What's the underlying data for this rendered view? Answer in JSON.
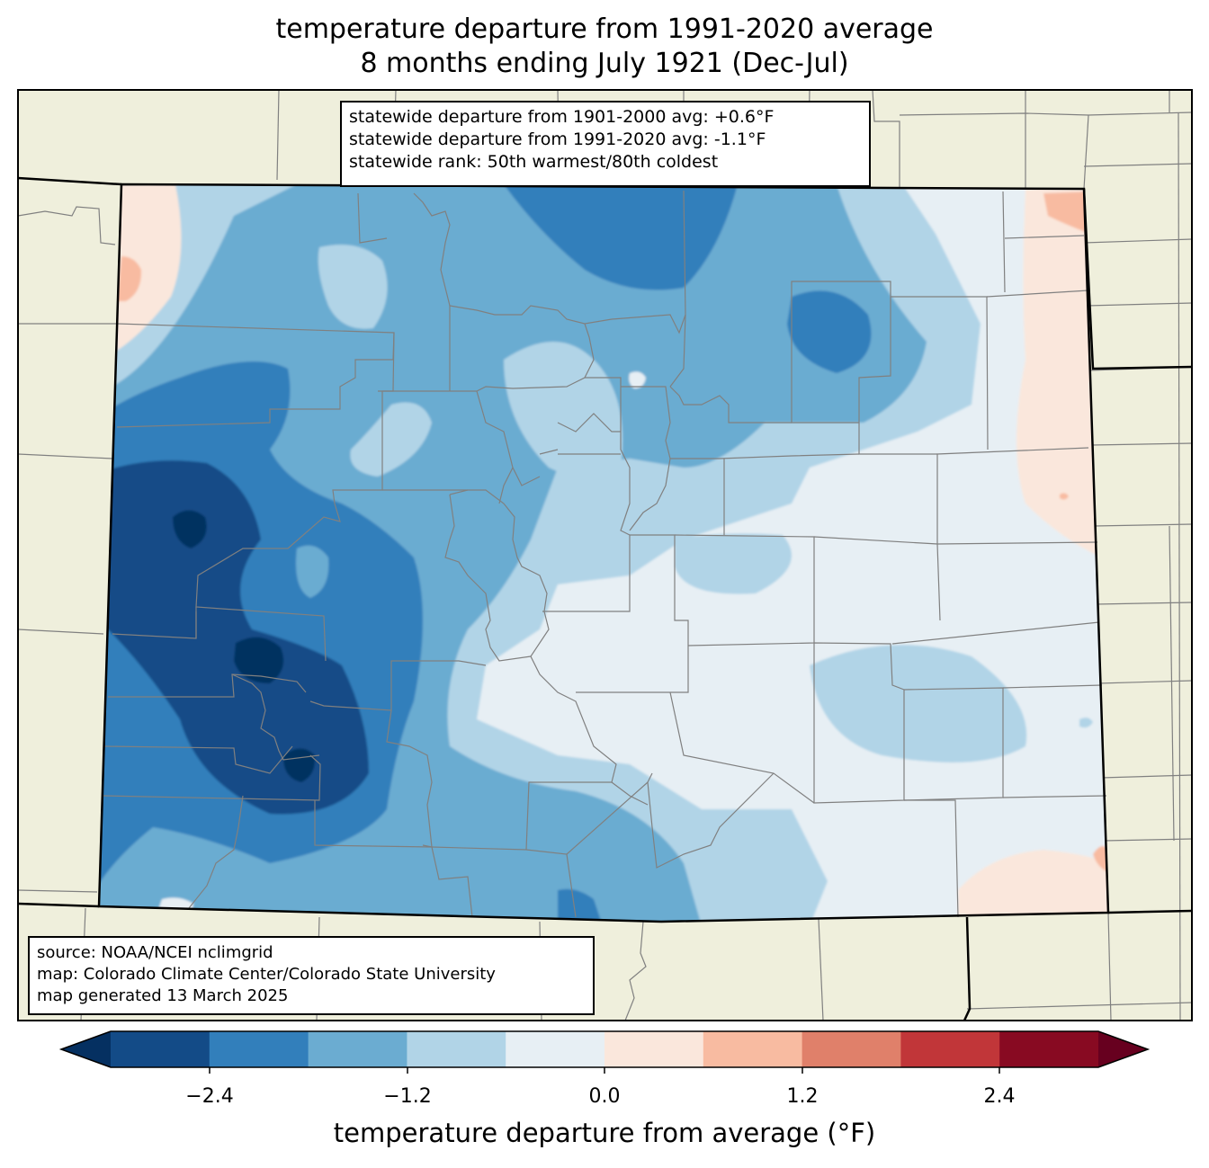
{
  "title": {
    "line1": "temperature departure from 1991-2020 average",
    "line2": "8 months ending July 1921 (Dec-Jul)"
  },
  "stats": {
    "line1": "statewide departure from 1901-2000 avg: +0.6°F",
    "line2": "statewide departure from 1991-2020 avg: -1.1°F",
    "line3": "statewide rank: 50th warmest/80th coldest"
  },
  "source": {
    "line1": "source: NOAA/NCEI nclimgrid",
    "line2": "map: Colorado Climate Center/Colorado State University",
    "line3": "map generated 13 March 2025"
  },
  "colorbar": {
    "label": "temperature departure from average (°F)",
    "ticks": [
      "−2.4",
      "−1.2",
      "0.0",
      "1.2",
      "2.4"
    ],
    "levels": [
      -3.0,
      -2.4,
      -1.8,
      -1.2,
      -0.6,
      0.0,
      0.6,
      1.2,
      1.8,
      2.4,
      3.0
    ],
    "colors": [
      "#053061",
      "#134b87",
      "#327fbb",
      "#6bacd1",
      "#b1d4e7",
      "#e7eff4",
      "#fae7dc",
      "#f8bba1",
      "#e0806a",
      "#c13639",
      "#880a22",
      "#67001f"
    ]
  },
  "map_colors": {
    "land": "#efefdc",
    "county_line": "#808080",
    "state_line": "#000000"
  }
}
